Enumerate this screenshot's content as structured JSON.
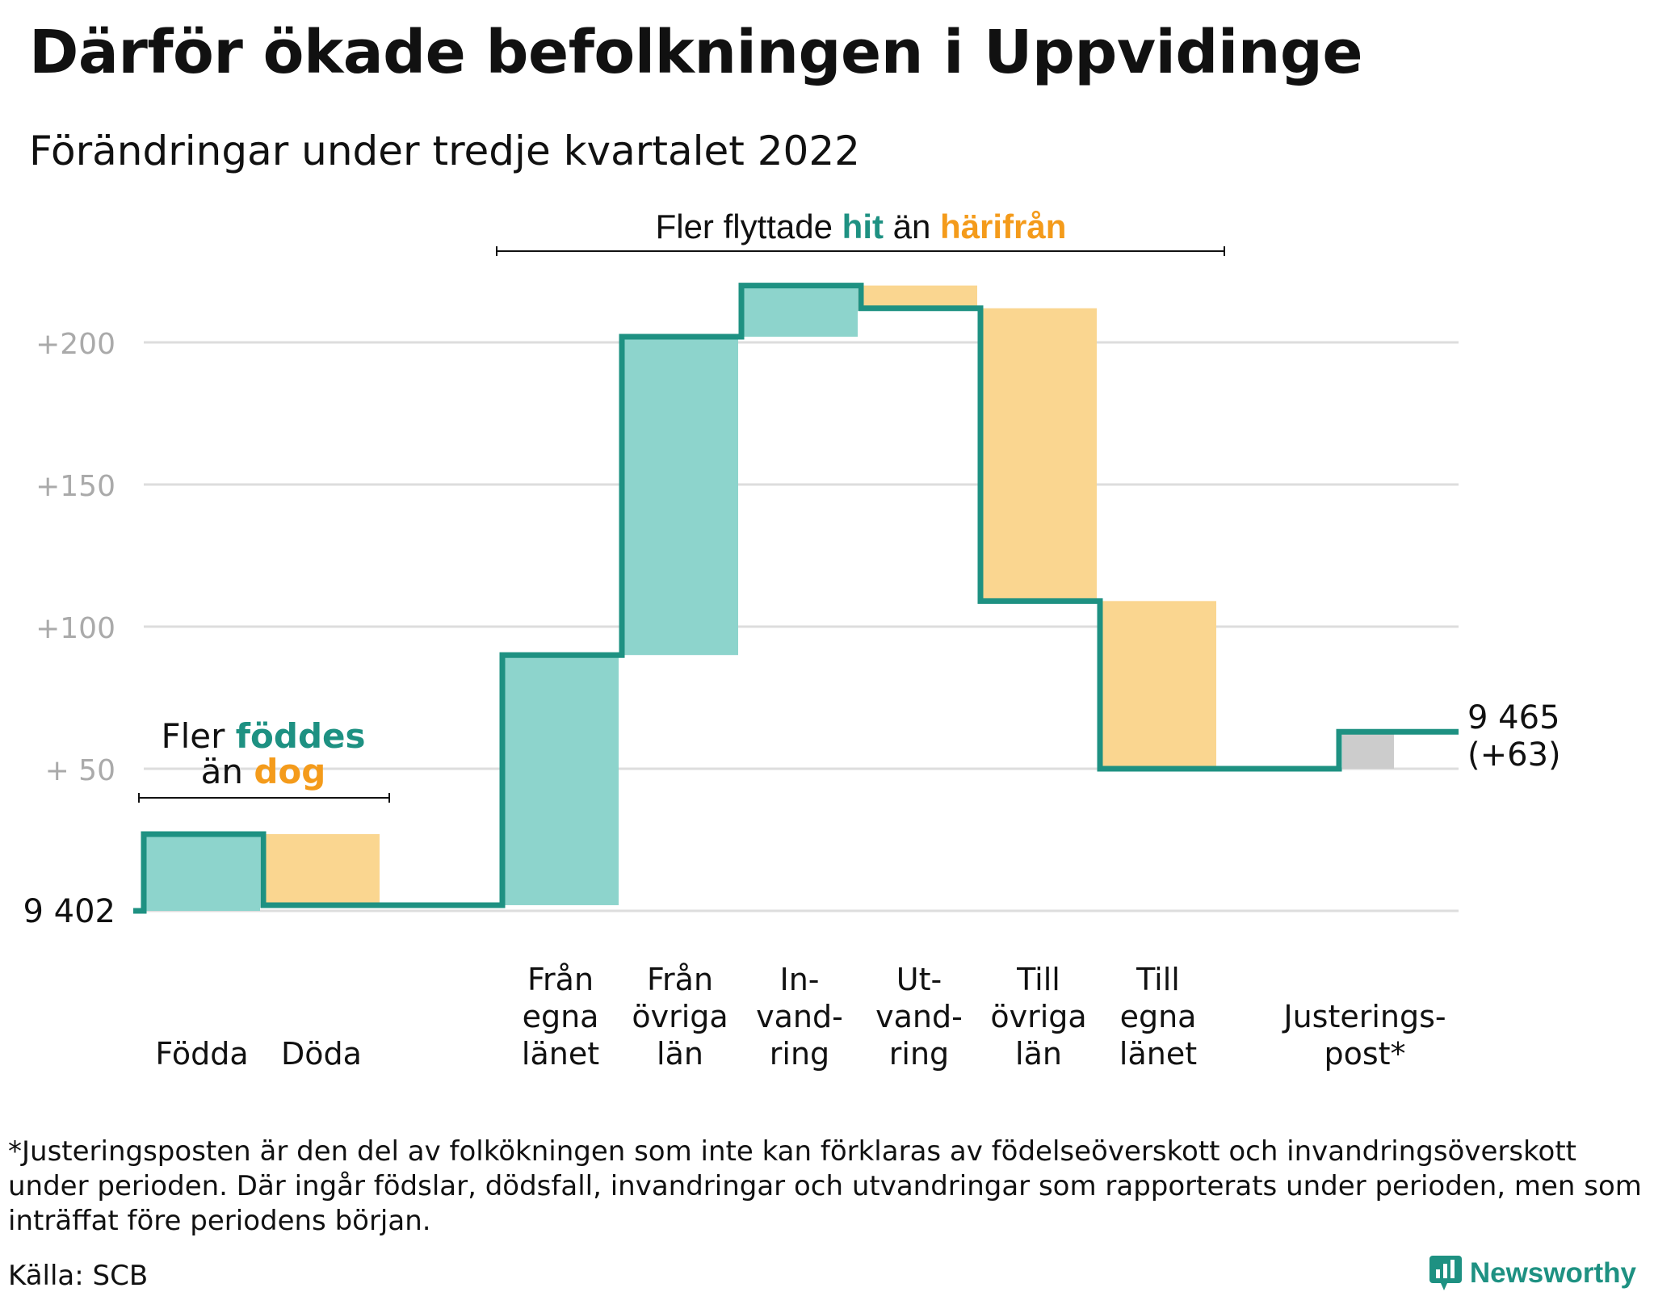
{
  "header": {
    "title": "Därför ökade befolkningen i Uppvidinge",
    "subtitle": "Förändringar under tredje kvartalet 2022"
  },
  "colors": {
    "inflow": "#8dd4cc",
    "outflow": "#fad690",
    "adjustment": "#cccccc",
    "line": "#1e9182",
    "teal_text": "#1e9182",
    "orange_text": "#f49b1b",
    "grid": "#dddddd",
    "tick_text": "#aaaaaa"
  },
  "chart_data": {
    "type": "waterfall",
    "start_value": 9402,
    "start_label": "9 402",
    "end_label_value": "9 465",
    "end_label_change": "(+63)",
    "ylim": [
      0,
      220
    ],
    "y_ticks": [
      {
        "value": 50,
        "label": "+ 50"
      },
      {
        "value": 100,
        "label": "+100"
      },
      {
        "value": 150,
        "label": "+150"
      },
      {
        "value": 200,
        "label": "+200"
      }
    ],
    "steps": [
      {
        "category": "Födda",
        "label_lines": [
          "Födda"
        ],
        "value": 27,
        "kind": "inflow"
      },
      {
        "category": "Döda",
        "label_lines": [
          "Döda"
        ],
        "value": -25,
        "kind": "outflow"
      },
      {
        "category": "Från egna länet",
        "label_lines": [
          "Från",
          "egna",
          "länet"
        ],
        "value": 88,
        "kind": "inflow"
      },
      {
        "category": "Från övriga län",
        "label_lines": [
          "Från",
          "övriga",
          "län"
        ],
        "value": 112,
        "kind": "inflow"
      },
      {
        "category": "Invandring",
        "label_lines": [
          "In-",
          "vand-",
          "ring"
        ],
        "value": 18,
        "kind": "inflow"
      },
      {
        "category": "Utvandring",
        "label_lines": [
          "Ut-",
          "vand-",
          "ring"
        ],
        "value": -8,
        "kind": "outflow"
      },
      {
        "category": "Till övriga län",
        "label_lines": [
          "Till",
          "övriga",
          "län"
        ],
        "value": -103,
        "kind": "outflow"
      },
      {
        "category": "Till egna länet",
        "label_lines": [
          "Till",
          "egna",
          "länet"
        ],
        "value": -59,
        "kind": "outflow"
      },
      {
        "category": "Justeringspost*",
        "label_lines": [
          "Justerings-",
          "post*"
        ],
        "value": 13,
        "kind": "adjustment"
      }
    ],
    "annotations": {
      "births": {
        "pre": "Fler ",
        "hi1": "föddes",
        "line2_pre": "än ",
        "hi2": "dog"
      },
      "migration": {
        "pre": "Fler flyttade ",
        "hi1": "hit",
        "mid": " än ",
        "hi2": "härifrån"
      }
    }
  },
  "footnote": "*Justeringsposten är den del av folkökningen som inte kan förklaras av födelseöverskott och invandringsöverskott under perioden. Där ingår födslar, dödsfall, invandringar och utvandringar som rapporterats under perioden, men som inträffat före periodens början.",
  "source": "Källa: SCB",
  "brand": "Newsworthy"
}
